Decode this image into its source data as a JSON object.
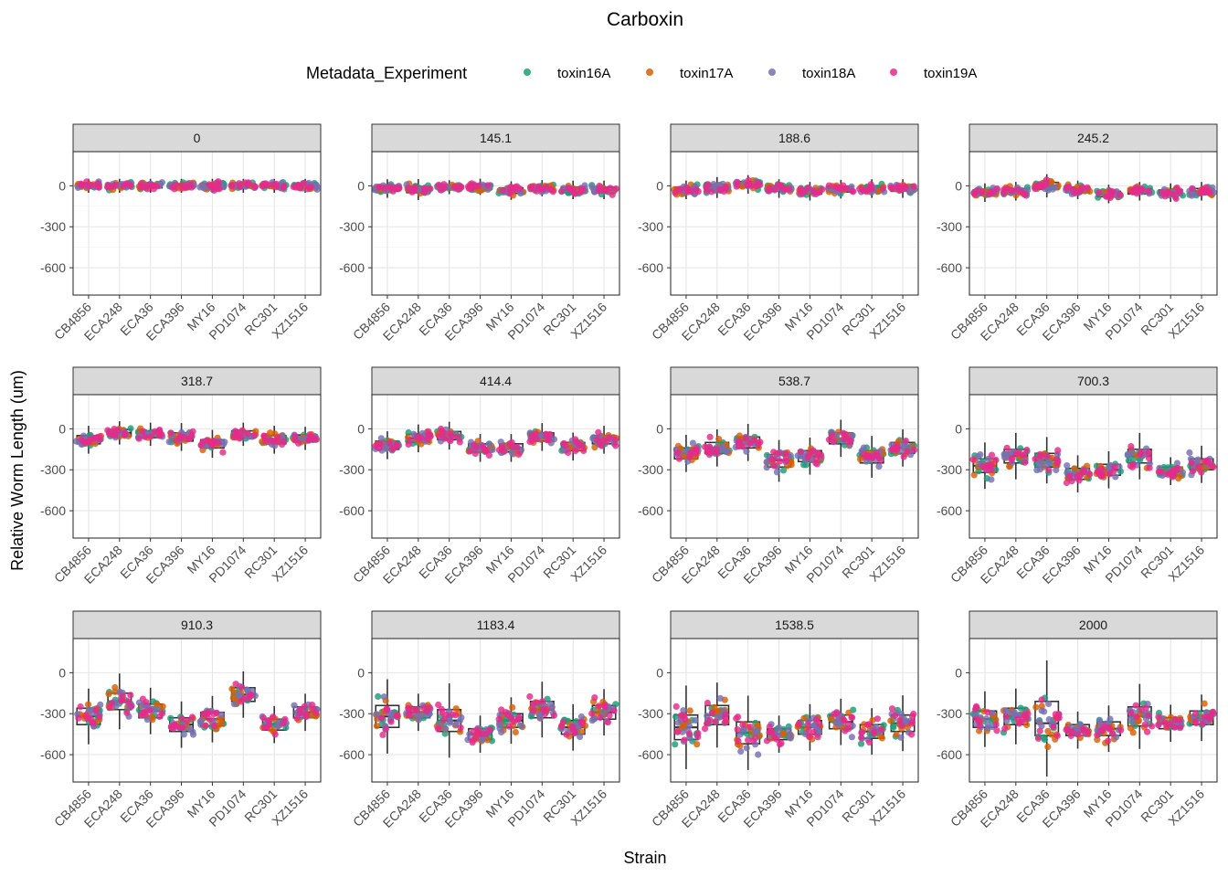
{
  "chart_data": {
    "type": "scatter",
    "title": "Carboxin",
    "xlabel": "Strain",
    "ylabel": "Relative Worm Length (um)",
    "legend": {
      "title": "Metadata_Experiment",
      "position": "top",
      "entries": [
        {
          "name": "toxin16A",
          "color": "#1b9e77"
        },
        {
          "name": "toxin17A",
          "color": "#d95f02"
        },
        {
          "name": "toxin18A",
          "color": "#7570b3"
        },
        {
          "name": "toxin19A",
          "color": "#e7298a"
        }
      ]
    },
    "categories": [
      "CB4856",
      "ECA248",
      "ECA36",
      "ECA396",
      "MY16",
      "PD1074",
      "RC301",
      "XZ1516"
    ],
    "ylim": [
      -800,
      250
    ],
    "yticks": [
      0,
      -300,
      -600
    ],
    "ytick_labels": [
      "0",
      "-300",
      "-600"
    ],
    "grid": true,
    "facets": [
      {
        "label": "0",
        "box": {
          "median": [
            0,
            0,
            0,
            0,
            0,
            0,
            0,
            0
          ],
          "q1": [
            -15,
            -15,
            -15,
            -15,
            -15,
            -15,
            -15,
            -15
          ],
          "q3": [
            15,
            15,
            15,
            15,
            15,
            15,
            15,
            15
          ]
        }
      },
      {
        "label": "145.1",
        "box": {
          "median": [
            -20,
            -30,
            -10,
            -10,
            -35,
            -20,
            -30,
            -30
          ],
          "q1": [
            -40,
            -50,
            -25,
            -25,
            -55,
            -35,
            -50,
            -50
          ],
          "q3": [
            0,
            -5,
            5,
            10,
            -15,
            0,
            -10,
            -10
          ]
        }
      },
      {
        "label": "188.6",
        "box": {
          "median": [
            -30,
            -10,
            10,
            -20,
            -40,
            -25,
            -20,
            -20
          ],
          "q1": [
            -50,
            -35,
            -10,
            -40,
            -60,
            -45,
            -40,
            -40
          ],
          "q3": [
            -10,
            10,
            30,
            0,
            -20,
            -5,
            0,
            0
          ]
        }
      },
      {
        "label": "245.2",
        "box": {
          "median": [
            -50,
            -40,
            0,
            -30,
            -60,
            -40,
            -50,
            -40
          ],
          "q1": [
            -70,
            -60,
            -25,
            -50,
            -80,
            -60,
            -70,
            -60
          ],
          "q3": [
            -30,
            -20,
            25,
            -10,
            -40,
            -20,
            -30,
            -20
          ]
        }
      },
      {
        "label": "318.7",
        "box": {
          "median": [
            -80,
            -30,
            -40,
            -60,
            -110,
            -40,
            -80,
            -70
          ],
          "q1": [
            -110,
            -55,
            -65,
            -90,
            -140,
            -65,
            -110,
            -95
          ],
          "q3": [
            -50,
            -5,
            -15,
            -30,
            -80,
            -15,
            -50,
            -45
          ]
        }
      },
      {
        "label": "414.4",
        "box": {
          "median": [
            -120,
            -70,
            -50,
            -140,
            -140,
            -60,
            -130,
            -80
          ],
          "q1": [
            -150,
            -100,
            -80,
            -170,
            -170,
            -90,
            -160,
            -110
          ],
          "q3": [
            -90,
            -40,
            -20,
            -110,
            -110,
            -30,
            -100,
            -50
          ]
        }
      },
      {
        "label": "538.7",
        "box": {
          "median": [
            -180,
            -140,
            -100,
            -230,
            -200,
            -70,
            -200,
            -140
          ],
          "q1": [
            -220,
            -180,
            -140,
            -280,
            -240,
            -110,
            -250,
            -180
          ],
          "q3": [
            -140,
            -100,
            -60,
            -190,
            -160,
            -30,
            -160,
            -100
          ]
        }
      },
      {
        "label": "700.3",
        "box": {
          "median": [
            -270,
            -200,
            -230,
            -330,
            -300,
            -200,
            -310,
            -260
          ],
          "q1": [
            -320,
            -250,
            -280,
            -370,
            -340,
            -250,
            -340,
            -300
          ],
          "q3": [
            -220,
            -150,
            -180,
            -290,
            -260,
            -150,
            -280,
            -220
          ]
        }
      },
      {
        "label": "910.3",
        "box": {
          "median": [
            -320,
            -210,
            -280,
            -380,
            -340,
            -160,
            -380,
            -290
          ],
          "q1": [
            -380,
            -270,
            -330,
            -430,
            -390,
            -210,
            -420,
            -330
          ],
          "q3": [
            -260,
            -150,
            -230,
            -330,
            -290,
            -110,
            -340,
            -250
          ]
        }
      },
      {
        "label": "1183.4",
        "box": {
          "median": [
            -320,
            -290,
            -350,
            -450,
            -350,
            -270,
            -400,
            -290
          ],
          "q1": [
            -400,
            -330,
            -430,
            -490,
            -400,
            -330,
            -450,
            -340
          ],
          "q3": [
            -240,
            -250,
            -270,
            -410,
            -300,
            -210,
            -350,
            -240
          ]
        }
      },
      {
        "label": "1538.5",
        "box": {
          "median": [
            -400,
            -310,
            -440,
            -450,
            -400,
            -360,
            -430,
            -370
          ],
          "q1": [
            -490,
            -380,
            -520,
            -490,
            -450,
            -410,
            -480,
            -430
          ],
          "q3": [
            -310,
            -240,
            -360,
            -410,
            -350,
            -310,
            -380,
            -310
          ]
        }
      },
      {
        "label": "2000",
        "box": {
          "median": [
            -340,
            -320,
            -370,
            -420,
            -410,
            -320,
            -370,
            -330
          ],
          "q1": [
            -400,
            -380,
            -460,
            -460,
            -460,
            -390,
            -410,
            -380
          ],
          "q3": [
            -280,
            -260,
            -210,
            -380,
            -360,
            -250,
            -330,
            -280
          ]
        }
      }
    ]
  }
}
